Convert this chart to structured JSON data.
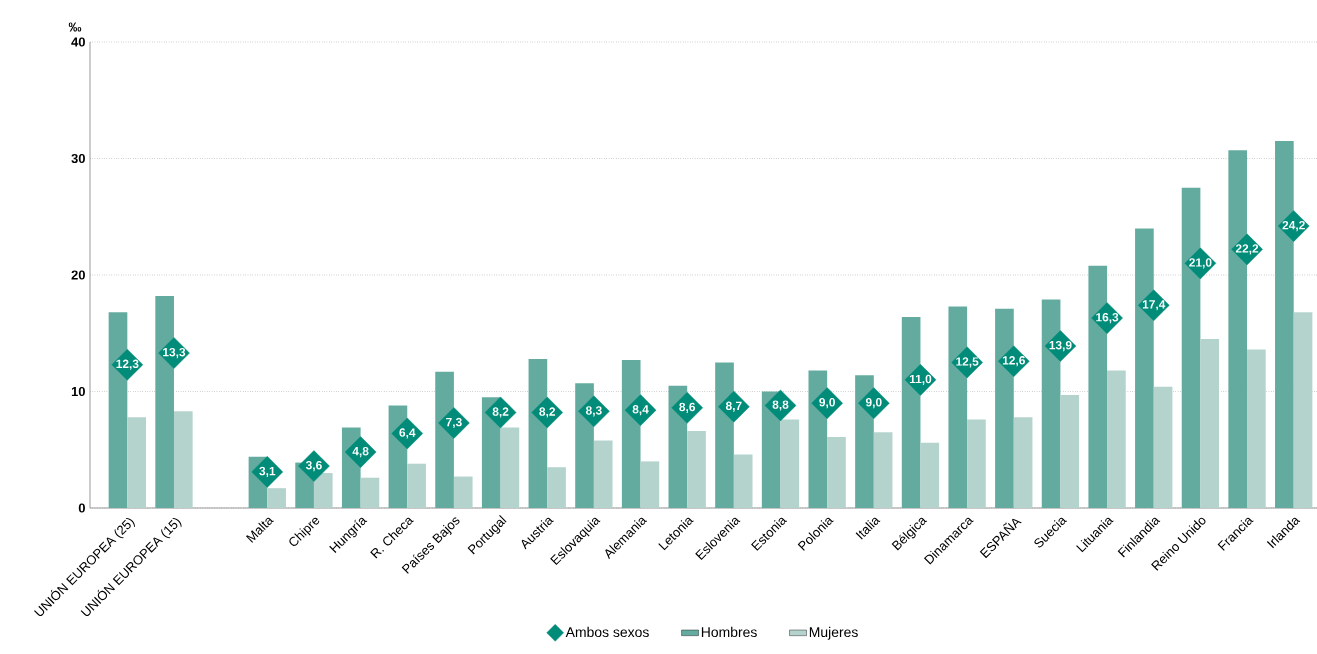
{
  "chart_data": {
    "type": "bar",
    "ylabel": "‰",
    "categories": [
      "UNIÓN EUROPEA (25)",
      "UNIÓN EUROPEA (15)",
      null,
      "Malta",
      "Chipre",
      "Hungría",
      "R. Checa",
      "Países Bajos",
      "Portugal",
      "Austria",
      "Eslovaquia",
      "Alemania",
      "Letonia",
      "Eslovenia",
      "Estonia",
      "Polonia",
      "Italia",
      "Bélgica",
      "Dinamarca",
      "ESPAÑA",
      "Suecia",
      "Lituania",
      "Finlandia",
      "Reino Unido",
      "Francia",
      "Irlanda"
    ],
    "series": [
      {
        "name": "Ambos sexos",
        "type": "scatter",
        "marker": "diamond",
        "color": "#008c78",
        "values": [
          12.3,
          13.3,
          null,
          3.1,
          3.6,
          4.8,
          6.4,
          7.3,
          8.2,
          8.2,
          8.3,
          8.4,
          8.6,
          8.7,
          8.8,
          9.0,
          9.0,
          11.0,
          12.5,
          12.6,
          13.9,
          16.3,
          17.4,
          21.0,
          22.2,
          24.2
        ],
        "value_labels": [
          "12,3",
          "13,3",
          null,
          "3,1",
          "3,6",
          "4,8",
          "6,4",
          "7,3",
          "8,2",
          "8,2",
          "8,3",
          "8,4",
          "8,6",
          "8,7",
          "8,8",
          "9,0",
          "9,0",
          "11,0",
          "12,5",
          "12,6",
          "13,9",
          "16,3",
          "17,4",
          "21,0",
          "22,2",
          "24,2"
        ]
      },
      {
        "name": "Hombres",
        "color": "#64ab9f",
        "values": [
          16.8,
          18.2,
          null,
          4.4,
          3.9,
          6.9,
          8.8,
          11.7,
          9.5,
          12.8,
          10.7,
          12.7,
          10.5,
          12.5,
          10.0,
          11.8,
          11.4,
          16.4,
          17.3,
          17.1,
          17.9,
          20.8,
          24.0,
          27.5,
          30.7,
          31.5
        ]
      },
      {
        "name": "Mujeres",
        "color": "#b4d3cd",
        "values": [
          7.8,
          8.3,
          null,
          1.7,
          3.0,
          2.6,
          3.8,
          2.7,
          6.9,
          3.5,
          5.8,
          4.0,
          6.6,
          4.6,
          7.6,
          6.1,
          6.5,
          5.6,
          7.6,
          7.8,
          9.7,
          11.8,
          10.4,
          14.5,
          13.6,
          16.8
        ]
      }
    ],
    "ylim": [
      0,
      40
    ],
    "yticks": [
      0,
      10,
      20,
      30,
      40
    ],
    "grid": "y",
    "legend": "bottom"
  }
}
